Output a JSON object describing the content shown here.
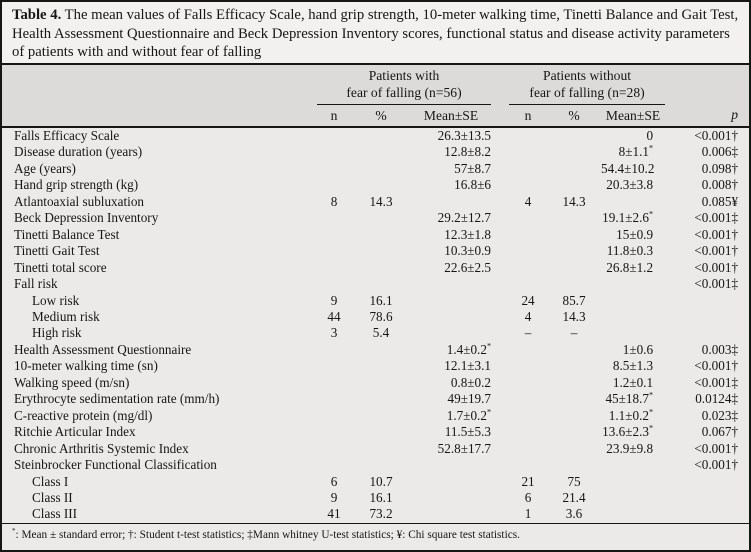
{
  "colors": {
    "border": "#161616",
    "caption_bg": "#f2f1ef",
    "header_band_bg": "#dcdbd9",
    "body_bg": "#ebeae8",
    "text": "#161616"
  },
  "caption": {
    "label": "Table 4.",
    "text": "The mean values of Falls Efficacy Scale, hand grip strength, 10-meter walking time, Tinetti Balance and Gait Test, Health Assessment Questionnaire and Beck Depression Inventory scores, functional status and disease activity parameters of patients with and without fear of falling"
  },
  "table": {
    "header": {
      "group_with": {
        "line1": "Patients with",
        "line2": "fear of falling (n=56)"
      },
      "group_without": {
        "line1": "Patients without",
        "line2": "fear of falling (n=28)"
      },
      "sub": {
        "n": "n",
        "pct": "%",
        "mean": "Mean±SE",
        "p": "p"
      }
    },
    "rows": [
      {
        "label": "Falls Efficacy Scale",
        "indent": 0,
        "n1": "",
        "pct1": "",
        "mean1": "26.3±13.5",
        "n2": "",
        "pct2": "",
        "mean2": "0",
        "p": "<0.001†"
      },
      {
        "label": "Disease duration (years)",
        "indent": 0,
        "n1": "",
        "pct1": "",
        "mean1": "12.8±8.2",
        "n2": "",
        "pct2": "",
        "mean2": "8±1.1*",
        "p": "0.006‡"
      },
      {
        "label": "Age (years)",
        "indent": 0,
        "n1": "",
        "pct1": "",
        "mean1": "57±8.7",
        "n2": "",
        "pct2": "",
        "mean2": "54.4±10.2",
        "p": "0.098†"
      },
      {
        "label": "Hand grip strength (kg)",
        "indent": 0,
        "n1": "",
        "pct1": "",
        "mean1": "16.8±6",
        "n2": "",
        "pct2": "",
        "mean2": "20.3±3.8",
        "p": "0.008†"
      },
      {
        "label": "Atlantoaxial subluxation",
        "indent": 0,
        "n1": "8",
        "pct1": "14.3",
        "mean1": "",
        "n2": "4",
        "pct2": "14.3",
        "mean2": "",
        "p": "0.085¥"
      },
      {
        "label": "Beck Depression Inventory",
        "indent": 0,
        "n1": "",
        "pct1": "",
        "mean1": "29.2±12.7",
        "n2": "",
        "pct2": "",
        "mean2": "19.1±2.6*",
        "p": "<0.001‡"
      },
      {
        "label": "Tinetti Balance Test",
        "indent": 0,
        "n1": "",
        "pct1": "",
        "mean1": "12.3±1.8",
        "n2": "",
        "pct2": "",
        "mean2": "15±0.9",
        "p": "<0.001†"
      },
      {
        "label": "Tinetti Gait Test",
        "indent": 0,
        "n1": "",
        "pct1": "",
        "mean1": "10.3±0.9",
        "n2": "",
        "pct2": "",
        "mean2": "11.8±0.3",
        "p": "<0.001†"
      },
      {
        "label": "Tinetti total score",
        "indent": 0,
        "n1": "",
        "pct1": "",
        "mean1": "22.6±2.5",
        "n2": "",
        "pct2": "",
        "mean2": "26.8±1.2",
        "p": "<0.001†"
      },
      {
        "label": "Fall risk",
        "indent": 0,
        "n1": "",
        "pct1": "",
        "mean1": "",
        "n2": "",
        "pct2": "",
        "mean2": "",
        "p": "<0.001‡"
      },
      {
        "label": "Low risk",
        "indent": 1,
        "n1": "9",
        "pct1": "16.1",
        "mean1": "",
        "n2": "24",
        "pct2": "85.7",
        "mean2": "",
        "p": ""
      },
      {
        "label": "Medium risk",
        "indent": 1,
        "n1": "44",
        "pct1": "78.6",
        "mean1": "",
        "n2": "4",
        "pct2": "14.3",
        "mean2": "",
        "p": ""
      },
      {
        "label": "High risk",
        "indent": 1,
        "n1": "3",
        "pct1": "5.4",
        "mean1": "",
        "n2": "–",
        "pct2": "–",
        "mean2": "",
        "p": ""
      },
      {
        "label": "Health Assessment Questionnaire",
        "indent": 0,
        "n1": "",
        "pct1": "",
        "mean1": "1.4±0.2*",
        "n2": "",
        "pct2": "",
        "mean2": "1±0.6",
        "p": "0.003‡"
      },
      {
        "label": "10-meter walking time (sn)",
        "indent": 0,
        "n1": "",
        "pct1": "",
        "mean1": "12.1±3.1",
        "n2": "",
        "pct2": "",
        "mean2": "8.5±1.3",
        "p": "<0.001†"
      },
      {
        "label": "Walking speed (m/sn)",
        "indent": 0,
        "n1": "",
        "pct1": "",
        "mean1": "0.8±0.2",
        "n2": "",
        "pct2": "",
        "mean2": "1.2±0.1",
        "p": "<0.001‡"
      },
      {
        "label": "Erythrocyte sedimentation rate (mm/h)",
        "indent": 0,
        "n1": "",
        "pct1": "",
        "mean1": "49±19.7",
        "n2": "",
        "pct2": "",
        "mean2": "45±18.7*",
        "p": "0.0124‡"
      },
      {
        "label": "C-reactive protein (mg/dl)",
        "indent": 0,
        "n1": "",
        "pct1": "",
        "mean1": "1.7±0.2*",
        "n2": "",
        "pct2": "",
        "mean2": "1.1±0.2*",
        "p": "0.023‡"
      },
      {
        "label": "Ritchie Articular Index",
        "indent": 0,
        "n1": "",
        "pct1": "",
        "mean1": "11.5±5.3",
        "n2": "",
        "pct2": "",
        "mean2": "13.6±2.3*",
        "p": "0.067†"
      },
      {
        "label": "Chronic Arthritis Systemic Index",
        "indent": 0,
        "n1": "",
        "pct1": "",
        "mean1": "52.8±17.7",
        "n2": "",
        "pct2": "",
        "mean2": "23.9±9.8",
        "p": "<0.001†"
      },
      {
        "label": "Steinbrocker Functional Classification",
        "indent": 0,
        "n1": "",
        "pct1": "",
        "mean1": "",
        "n2": "",
        "pct2": "",
        "mean2": "",
        "p": "<0.001†"
      },
      {
        "label": "Class I",
        "indent": 1,
        "n1": "6",
        "pct1": "10.7",
        "mean1": "",
        "n2": "21",
        "pct2": "75",
        "mean2": "",
        "p": ""
      },
      {
        "label": "Class II",
        "indent": 1,
        "n1": "9",
        "pct1": "16.1",
        "mean1": "",
        "n2": "6",
        "pct2": "21.4",
        "mean2": "",
        "p": ""
      },
      {
        "label": "Class III",
        "indent": 1,
        "n1": "41",
        "pct1": "73.2",
        "mean1": "",
        "n2": "1",
        "pct2": "3.6",
        "mean2": "",
        "p": ""
      }
    ]
  },
  "footnote": {
    "sup": "*",
    "text": ": Mean ± standard error; †: Student t-test statistics; ‡Mann whitney U-test statistics; ¥: Chi square test statistics."
  }
}
